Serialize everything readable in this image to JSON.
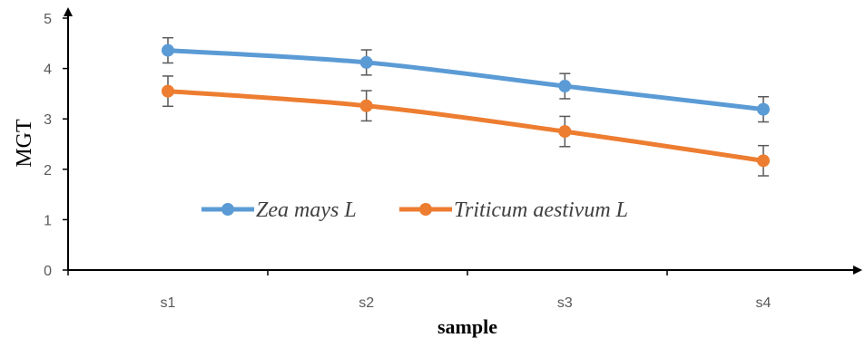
{
  "chart_data": {
    "type": "line",
    "xlabel": "sample",
    "ylabel": "MGT",
    "categories": [
      "s1",
      "s2",
      "s3",
      "s4"
    ],
    "ylim": [
      0,
      5
    ],
    "yticks": [
      0,
      1,
      2,
      3,
      4,
      5
    ],
    "grid": false,
    "legend_position": "center-left",
    "series": [
      {
        "name": "Zea mays L",
        "color": "#5B9BD5",
        "values": [
          4.36,
          4.12,
          3.65,
          3.19
        ],
        "error": [
          0.25,
          0.25,
          0.25,
          0.25
        ]
      },
      {
        "name": "Triticum aestivum L",
        "color": "#ED7D31",
        "values": [
          3.55,
          3.26,
          2.75,
          2.17
        ],
        "error": [
          0.3,
          0.3,
          0.3,
          0.3
        ]
      }
    ]
  }
}
